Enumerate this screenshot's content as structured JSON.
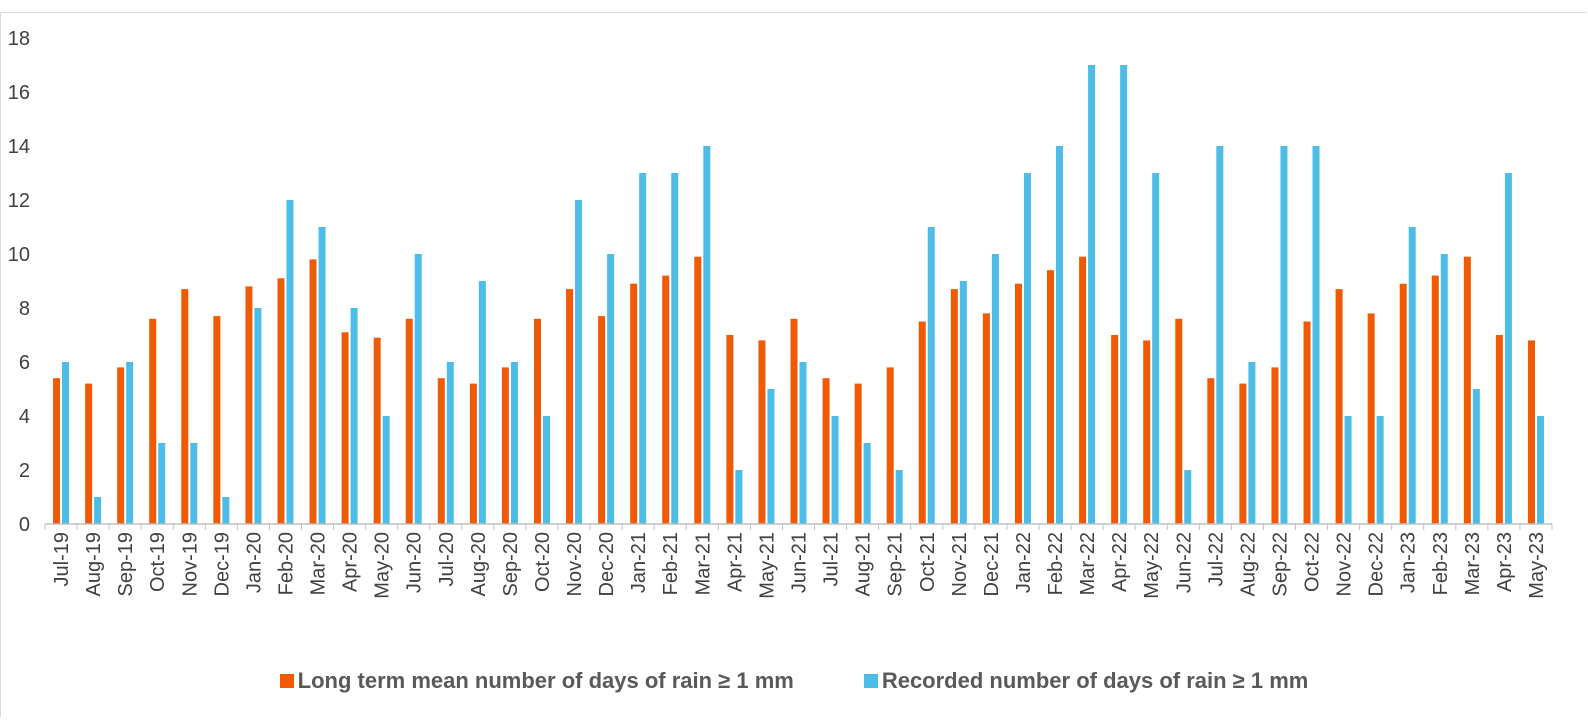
{
  "chart_data": {
    "type": "bar",
    "categories": [
      "Jul-19",
      "Aug-19",
      "Sep-19",
      "Oct-19",
      "Nov-19",
      "Dec-19",
      "Jan-20",
      "Feb-20",
      "Mar-20",
      "Apr-20",
      "May-20",
      "Jun-20",
      "Jul-20",
      "Aug-20",
      "Sep-20",
      "Oct-20",
      "Nov-20",
      "Dec-20",
      "Jan-21",
      "Feb-21",
      "Mar-21",
      "Apr-21",
      "May-21",
      "Jun-21",
      "Jul-21",
      "Aug-21",
      "Sep-21",
      "Oct-21",
      "Nov-21",
      "Dec-21",
      "Jan-22",
      "Feb-22",
      "Mar-22",
      "Apr-22",
      "May-22",
      "Jun-22",
      "Jul-22",
      "Aug-22",
      "Sep-22",
      "Oct-22",
      "Nov-22",
      "Dec-22",
      "Jan-23",
      "Feb-23",
      "Mar-23",
      "Apr-23",
      "May-23"
    ],
    "series": [
      {
        "name": "Long term mean number of days of rain ≥ 1 mm",
        "color": "#f05a05",
        "values": [
          5.4,
          5.2,
          5.8,
          7.6,
          8.7,
          7.7,
          8.8,
          9.1,
          9.8,
          7.1,
          6.9,
          7.6,
          5.4,
          5.2,
          5.8,
          7.6,
          8.7,
          7.7,
          8.9,
          9.2,
          9.9,
          7.0,
          6.8,
          7.6,
          5.4,
          5.2,
          5.8,
          7.5,
          8.7,
          7.8,
          8.9,
          9.4,
          9.9,
          7.0,
          6.8,
          7.6,
          5.4,
          5.2,
          5.8,
          7.5,
          8.7,
          7.8,
          8.9,
          9.2,
          9.9,
          7.0,
          6.8
        ]
      },
      {
        "name": "Recorded number of days of rain ≥ 1 mm",
        "color": "#4dbde8",
        "values": [
          6,
          1,
          6,
          3,
          3,
          1,
          8,
          12,
          11,
          8,
          4,
          10,
          6,
          9,
          6,
          4,
          12,
          10,
          13,
          13,
          14,
          2,
          5,
          6,
          4,
          3,
          2,
          11,
          9,
          10,
          13,
          14,
          17,
          17,
          13,
          2,
          14,
          6,
          14,
          14,
          4,
          4,
          11,
          10,
          5,
          13,
          4
        ]
      }
    ],
    "yticks": [
      "0",
      "2",
      "4",
      "6",
      "8",
      "10",
      "12",
      "14",
      "16",
      "18"
    ],
    "ylim": [
      0,
      18
    ],
    "grid": false,
    "legend_position": "bottom",
    "title": "",
    "xlabel": "",
    "ylabel": ""
  }
}
